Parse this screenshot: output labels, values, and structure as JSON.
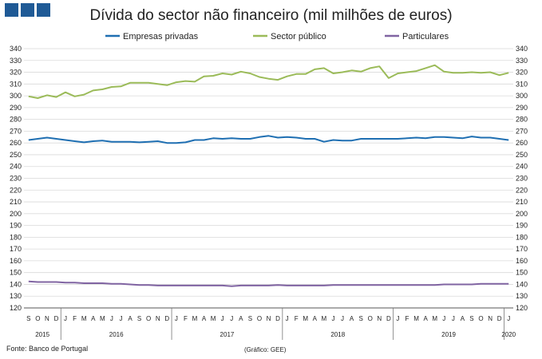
{
  "header": {
    "title": "Dívida do sector não financeiro (mil milhões de euros)"
  },
  "footer": {
    "source": "Fonte: Banco de Portugal",
    "credit": "(Gráfico: GEE)"
  },
  "colors": {
    "empresas": "#1f6fb2",
    "sector": "#9bbb59",
    "particulares": "#8064a2"
  },
  "chart_data": {
    "type": "line",
    "title": "Dívida do sector não financeiro (mil milhões de euros)",
    "x": [
      "S",
      "O",
      "N",
      "D",
      "J",
      "F",
      "M",
      "A",
      "M",
      "J",
      "J",
      "A",
      "S",
      "O",
      "N",
      "D",
      "J",
      "F",
      "M",
      "A",
      "M",
      "J",
      "J",
      "A",
      "S",
      "O",
      "N",
      "D",
      "J",
      "F",
      "M",
      "A",
      "M",
      "J",
      "J",
      "A",
      "S",
      "O",
      "N",
      "D",
      "J",
      "F",
      "M",
      "A",
      "M",
      "J",
      "J",
      "A",
      "S",
      "O",
      "N",
      "D",
      "J"
    ],
    "years": [
      {
        "label": "2015",
        "start": 0,
        "end": 3
      },
      {
        "label": "2016",
        "start": 4,
        "end": 15
      },
      {
        "label": "2017",
        "start": 16,
        "end": 27
      },
      {
        "label": "2018",
        "start": 28,
        "end": 39
      },
      {
        "label": "2019",
        "start": 40,
        "end": 51
      },
      {
        "label": "2020",
        "start": 52,
        "end": 52
      }
    ],
    "ylim": [
      120,
      340
    ],
    "ystep": 10,
    "legend": "top",
    "series": [
      {
        "name": "Empresas privadas",
        "color": "#1f6fb2",
        "values": [
          262.5,
          263.5,
          264.5,
          263.5,
          262.5,
          261.5,
          260.5,
          261.5,
          262,
          261,
          261,
          261,
          260.5,
          261,
          261.5,
          260,
          260,
          260.5,
          262.5,
          262.5,
          264,
          263.5,
          264,
          263.5,
          263.5,
          265,
          266,
          264.5,
          265,
          264.5,
          263.5,
          263.5,
          261,
          262.5,
          262,
          262,
          263.5,
          263.5,
          263.5,
          263.5,
          263.5,
          264,
          264.5,
          264,
          265,
          265,
          264.5,
          264,
          265.5,
          264.5,
          264.5,
          263.5,
          262.5
        ]
      },
      {
        "name": "Sector público",
        "color": "#9bbb59",
        "values": [
          299.5,
          298,
          300.5,
          299,
          303,
          299.5,
          301,
          304.5,
          305.5,
          307.5,
          308,
          311,
          311,
          311,
          310,
          309,
          311.5,
          312.5,
          312,
          316.5,
          317,
          319,
          318,
          320.5,
          319,
          316,
          314.5,
          313.5,
          316.5,
          318.5,
          318.5,
          322.5,
          323.5,
          319,
          320,
          321.5,
          320.5,
          323.5,
          325,
          315,
          319,
          320,
          321,
          323.5,
          326,
          320.5,
          319.5,
          319.5,
          320,
          319.5,
          320,
          317.5,
          319.5
        ]
      },
      {
        "name": "Particulares",
        "color": "#8064a2",
        "values": [
          142.5,
          142,
          142,
          142,
          141.5,
          141.5,
          141,
          141,
          141,
          140.5,
          140.5,
          140,
          139.5,
          139.5,
          139,
          139,
          139,
          139,
          139,
          139,
          139,
          139,
          138.5,
          139,
          139,
          139,
          139,
          139.5,
          139,
          139,
          139,
          139,
          139,
          139.5,
          139.5,
          139.5,
          139.5,
          139.5,
          139.5,
          139.5,
          139.5,
          139.5,
          139.5,
          139.5,
          139.5,
          140,
          140,
          140,
          140,
          140.5,
          140.5,
          140.5,
          140.5
        ]
      }
    ]
  }
}
